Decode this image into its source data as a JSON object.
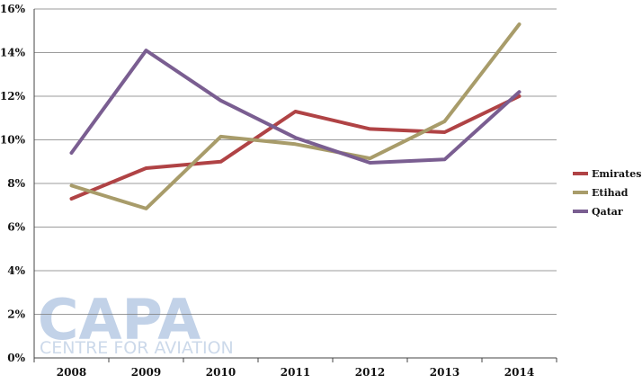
{
  "chart_data": {
    "type": "line",
    "title": "",
    "xlabel": "",
    "ylabel": "",
    "categories": [
      "2008",
      "2009",
      "2010",
      "2011",
      "2012",
      "2013",
      "2014"
    ],
    "ylim": [
      0,
      16
    ],
    "yticks": [
      0,
      2,
      4,
      6,
      8,
      10,
      12,
      14,
      16
    ],
    "ytick_labels": [
      "0%",
      "2%",
      "4%",
      "6%",
      "8%",
      "10%",
      "12%",
      "14%",
      "16%"
    ],
    "grid": true,
    "legend_position": "right",
    "series": [
      {
        "name": "Emirates",
        "color": "#b04345",
        "values": [
          7.3,
          8.7,
          9.0,
          11.3,
          10.5,
          10.35,
          12.0
        ]
      },
      {
        "name": "Etihad",
        "color": "#a89c6a",
        "values": [
          7.9,
          6.85,
          10.15,
          9.8,
          9.15,
          10.85,
          15.3
        ]
      },
      {
        "name": "Qatar",
        "color": "#7a5e91",
        "values": [
          9.4,
          14.1,
          11.8,
          10.1,
          8.95,
          9.1,
          12.2
        ]
      }
    ]
  },
  "watermark": {
    "logo_text": "CAPA",
    "subtitle": "CENTRE FOR AVIATION",
    "color": "#b8cbe4"
  }
}
